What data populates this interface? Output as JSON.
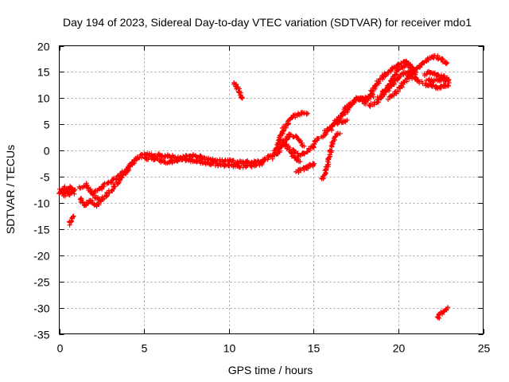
{
  "chart_data": {
    "type": "scatter",
    "title": "Day 194 of 2023, Sidereal Day-to-day VTEC variation (SDTVAR) for receiver mdo1",
    "xlabel": "GPS time / hours",
    "ylabel": "SDTVAR / TECUs",
    "xlim": [
      0,
      25
    ],
    "ylim": [
      -35,
      20
    ],
    "x_ticks": [
      0,
      5,
      10,
      15,
      20,
      25
    ],
    "y_ticks": [
      -35,
      -30,
      -25,
      -20,
      -15,
      -10,
      -5,
      0,
      5,
      10,
      15,
      20
    ],
    "x_tick_labels": [
      "0",
      "5",
      "10",
      "15",
      "20",
      "25"
    ],
    "y_tick_labels": [
      "-35",
      "-30",
      "-25",
      "-20",
      "-15",
      "-10",
      "-5",
      "0",
      "5",
      "10",
      "15",
      "20"
    ],
    "grid": true,
    "marker": "+",
    "series": [
      {
        "name": "SDTVAR",
        "color": "#ff0000",
        "tracks": [
          [
            [
              0.0,
              -7.5
            ],
            [
              0.3,
              -8.5
            ],
            [
              0.6,
              -7.0
            ],
            [
              0.9,
              -8.0
            ]
          ],
          [
            [
              0.0,
              -8.5
            ],
            [
              0.3,
              -7.0
            ],
            [
              0.6,
              -8.3
            ],
            [
              0.9,
              -7.2
            ]
          ],
          [
            [
              0.6,
              -14.0
            ],
            [
              0.75,
              -13.0
            ],
            [
              0.9,
              -12.5
            ]
          ],
          [
            [
              1.2,
              -9.0
            ],
            [
              1.5,
              -10.5
            ],
            [
              1.8,
              -9.5
            ],
            [
              2.1,
              -10.5
            ],
            [
              2.4,
              -10.0
            ]
          ],
          [
            [
              1.2,
              -7.0
            ],
            [
              1.6,
              -6.5
            ],
            [
              2.0,
              -8.5
            ],
            [
              2.4,
              -9.5
            ],
            [
              2.8,
              -8.5
            ],
            [
              3.2,
              -7.0
            ],
            [
              3.6,
              -5.5
            ],
            [
              4.0,
              -4.0
            ],
            [
              4.3,
              -2.5
            ],
            [
              4.6,
              -1.5
            ]
          ],
          [
            [
              2.0,
              -8.0
            ],
            [
              2.5,
              -7.0
            ],
            [
              3.0,
              -6.0
            ],
            [
              3.5,
              -5.0
            ],
            [
              4.0,
              -3.5
            ],
            [
              4.4,
              -2.0
            ]
          ],
          [
            [
              4.5,
              -1.5
            ],
            [
              5.0,
              -0.8
            ],
            [
              5.5,
              -0.8
            ],
            [
              6.0,
              -1.0
            ],
            [
              6.5,
              -1.0
            ],
            [
              7.0,
              -1.5
            ],
            [
              7.5,
              -1.2
            ],
            [
              8.0,
              -1.0
            ],
            [
              8.5,
              -1.5
            ],
            [
              9.0,
              -1.8
            ],
            [
              9.5,
              -2.0
            ],
            [
              10.0,
              -2.0
            ],
            [
              10.5,
              -2.3
            ],
            [
              11.0,
              -2.2
            ],
            [
              11.5,
              -2.3
            ],
            [
              12.0,
              -2.0
            ],
            [
              12.5,
              -1.0
            ]
          ],
          [
            [
              5.0,
              -1.5
            ],
            [
              5.5,
              -1.5
            ],
            [
              6.0,
              -2.0
            ],
            [
              6.5,
              -2.2
            ],
            [
              7.0,
              -1.8
            ],
            [
              7.5,
              -1.7
            ],
            [
              8.0,
              -2.0
            ],
            [
              8.5,
              -2.3
            ],
            [
              9.0,
              -2.5
            ],
            [
              9.5,
              -2.8
            ],
            [
              10.0,
              -2.8
            ],
            [
              10.5,
              -3.0
            ],
            [
              11.0,
              -3.0
            ],
            [
              11.5,
              -2.8
            ],
            [
              12.0,
              -2.5
            ]
          ],
          [
            [
              10.3,
              13.0
            ],
            [
              10.5,
              12.0
            ],
            [
              10.7,
              10.5
            ],
            [
              10.8,
              10.0
            ]
          ],
          [
            [
              12.5,
              -1.5
            ],
            [
              12.8,
              0.0
            ],
            [
              13.0,
              2.0
            ],
            [
              13.2,
              4.0
            ],
            [
              13.5,
              5.5
            ],
            [
              13.8,
              6.5
            ],
            [
              14.2,
              7.0
            ],
            [
              14.6,
              7.0
            ]
          ],
          [
            [
              12.8,
              -1.0
            ],
            [
              13.2,
              1.5
            ],
            [
              13.6,
              3.0
            ],
            [
              14.0,
              2.5
            ],
            [
              14.4,
              1.0
            ]
          ],
          [
            [
              13.8,
              0.0
            ],
            [
              14.2,
              -1.0
            ],
            [
              14.5,
              -0.5
            ],
            [
              14.9,
              0.5
            ],
            [
              15.3,
              2.5
            ]
          ],
          [
            [
              13.0,
              2.0
            ],
            [
              13.5,
              0.5
            ],
            [
              13.9,
              -1.5
            ],
            [
              14.2,
              -2.0
            ]
          ],
          [
            [
              14.0,
              -4.0
            ],
            [
              14.4,
              -3.5
            ],
            [
              14.8,
              -3.0
            ],
            [
              15.1,
              -2.5
            ]
          ],
          [
            [
              15.5,
              -5.5
            ],
            [
              15.8,
              -3.0
            ],
            [
              16.0,
              0.0
            ],
            [
              16.2,
              2.0
            ],
            [
              16.5,
              3.5
            ]
          ],
          [
            [
              15.5,
              2.5
            ],
            [
              15.8,
              4.0
            ],
            [
              16.2,
              5.0
            ],
            [
              16.6,
              5.5
            ],
            [
              17.0,
              5.8
            ]
          ],
          [
            [
              16.0,
              4.0
            ],
            [
              16.3,
              5.5
            ],
            [
              16.7,
              7.0
            ],
            [
              17.0,
              7.5
            ]
          ],
          [
            [
              16.5,
              6.0
            ],
            [
              17.0,
              8.0
            ],
            [
              17.4,
              9.5
            ],
            [
              17.8,
              9.8
            ],
            [
              18.2,
              10.0
            ],
            [
              18.5,
              10.5
            ]
          ],
          [
            [
              16.8,
              8.0
            ],
            [
              17.2,
              9.0
            ],
            [
              17.6,
              10.0
            ],
            [
              18.0,
              9.5
            ]
          ],
          [
            [
              18.0,
              9.0
            ],
            [
              18.4,
              11.0
            ],
            [
              18.8,
              13.0
            ],
            [
              19.2,
              14.5
            ],
            [
              19.6,
              15.5
            ],
            [
              20.0,
              16.5
            ],
            [
              20.4,
              17.0
            ],
            [
              20.7,
              16.0
            ],
            [
              21.0,
              14.0
            ]
          ],
          [
            [
              18.3,
              8.5
            ],
            [
              18.8,
              9.5
            ],
            [
              19.2,
              11.0
            ],
            [
              19.6,
              12.5
            ],
            [
              20.0,
              14.0
            ],
            [
              20.4,
              15.0
            ],
            [
              20.8,
              14.0
            ]
          ],
          [
            [
              18.8,
              10.0
            ],
            [
              19.3,
              12.0
            ],
            [
              19.8,
              14.5
            ],
            [
              20.2,
              16.0
            ],
            [
              20.6,
              16.5
            ],
            [
              21.0,
              15.0
            ]
          ],
          [
            [
              19.4,
              10.0
            ],
            [
              19.8,
              11.0
            ],
            [
              20.2,
              12.5
            ],
            [
              20.6,
              14.0
            ],
            [
              21.0,
              15.5
            ],
            [
              21.4,
              16.5
            ],
            [
              21.8,
              17.5
            ],
            [
              22.1,
              18.0
            ],
            [
              22.5,
              17.5
            ],
            [
              22.9,
              16.5
            ]
          ],
          [
            [
              20.6,
              15.5
            ],
            [
              21.0,
              14.0
            ],
            [
              21.3,
              13.0
            ]
          ],
          [
            [
              21.5,
              14.5
            ],
            [
              21.9,
              15.0
            ],
            [
              22.3,
              14.5
            ],
            [
              22.7,
              14.0
            ],
            [
              23.0,
              13.0
            ]
          ],
          [
            [
              21.5,
              12.5
            ],
            [
              21.9,
              12.5
            ],
            [
              22.3,
              12.0
            ],
            [
              22.7,
              12.5
            ],
            [
              23.0,
              12.5
            ]
          ],
          [
            [
              21.7,
              13.5
            ],
            [
              22.1,
              13.2
            ],
            [
              22.5,
              13.5
            ],
            [
              22.9,
              13.5
            ]
          ],
          [
            [
              22.9,
              -30.0
            ],
            [
              22.7,
              -30.5
            ],
            [
              22.4,
              -31.5
            ],
            [
              22.3,
              -32.0
            ]
          ]
        ]
      }
    ]
  }
}
